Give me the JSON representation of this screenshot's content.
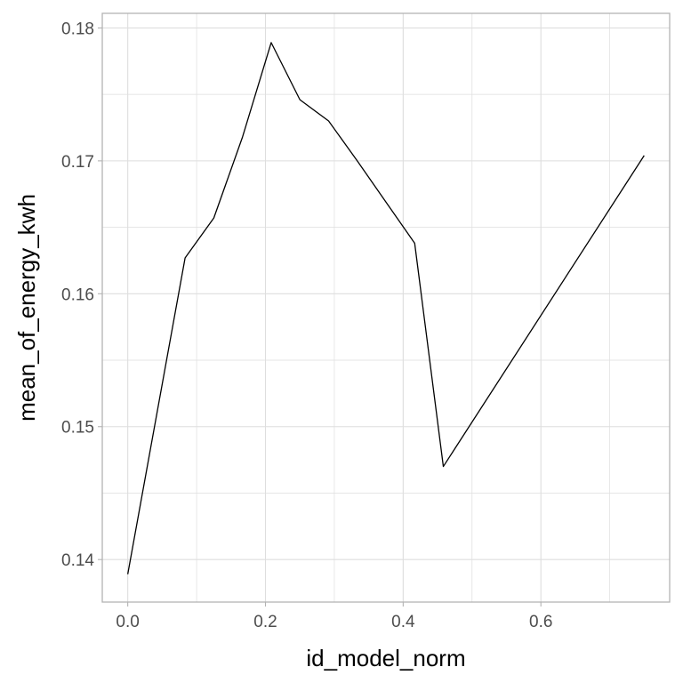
{
  "chart_data": {
    "type": "line",
    "title": "",
    "xlabel": "id_model_norm",
    "ylabel": "mean_of_energy_kwh",
    "xlim": [
      -0.037,
      0.787
    ],
    "ylim": [
      0.1368,
      0.1811
    ],
    "x_major_ticks": [
      0.0,
      0.2,
      0.4,
      0.6
    ],
    "x_tick_labels": [
      "0.0",
      "0.2",
      "0.4",
      "0.6"
    ],
    "x_minor_ticks": [
      0.1,
      0.3,
      0.5,
      0.7
    ],
    "y_major_ticks": [
      0.14,
      0.15,
      0.16,
      0.17,
      0.18
    ],
    "y_tick_labels": [
      "0.14",
      "0.15",
      "0.16",
      "0.17",
      "0.18"
    ],
    "y_minor_ticks": [
      0.145,
      0.155,
      0.165,
      0.175
    ],
    "grid": true,
    "theme": "light",
    "colors": {
      "line": "#000000",
      "grid": "#dedede",
      "panel_border": "#b3b3b3",
      "tick": "#b3b3b3"
    },
    "series": [
      {
        "x": [
          0.0,
          0.0833,
          0.125,
          0.1667,
          0.2083,
          0.25,
          0.2917,
          0.3333,
          0.375,
          0.4167,
          0.4583,
          0.75
        ],
        "y": [
          0.1389,
          0.1627,
          0.1657,
          0.1718,
          0.1789,
          0.1746,
          0.173,
          0.17,
          0.1669,
          0.1638,
          0.147,
          0.1704
        ]
      }
    ]
  }
}
